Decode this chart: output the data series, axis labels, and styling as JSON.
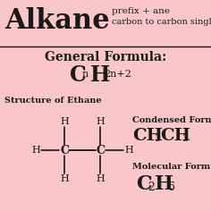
{
  "bg_color": "#f9c6c9",
  "text_color": "#1a1a1a",
  "title": "Alkane",
  "subtitle1": "prefix + ane",
  "subtitle2": "carbon to carbon single bonds",
  "general_formula_label": "General Formula:",
  "structure_label": "Structure of Ethane",
  "condensed_label": "Condensed Formula",
  "molecular_label": "Molecular Formula"
}
